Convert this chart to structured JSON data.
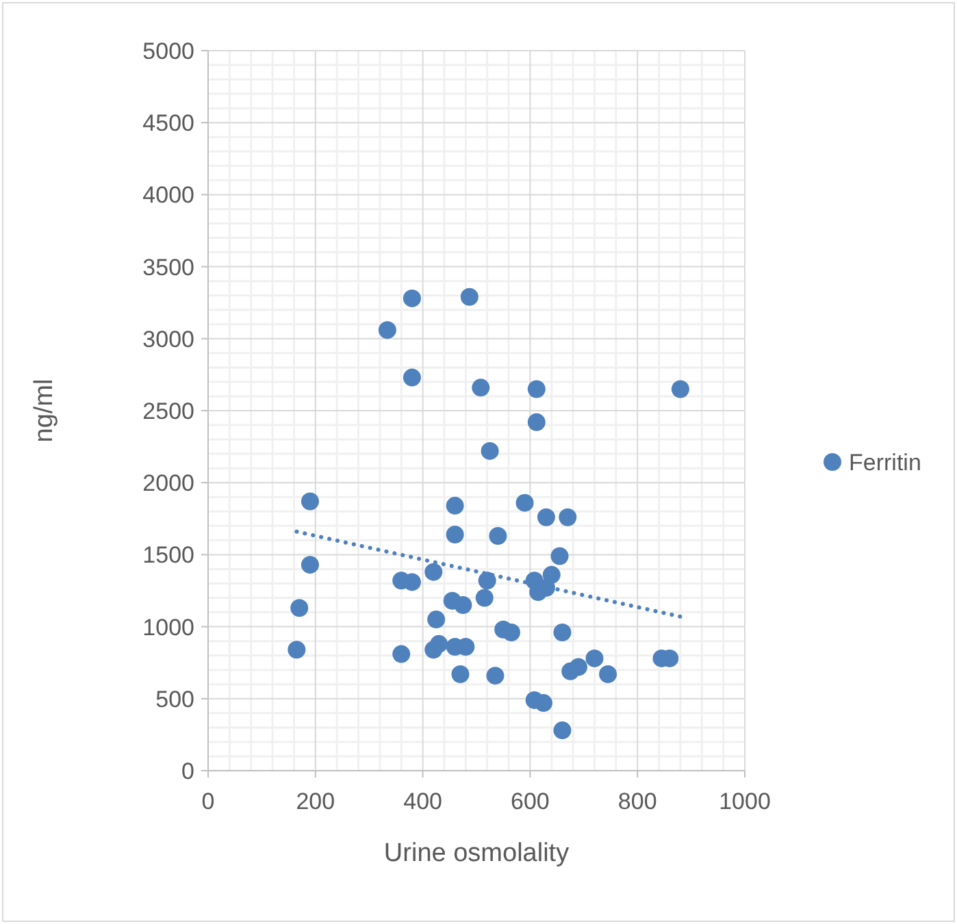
{
  "chart_data": {
    "type": "scatter",
    "xlabel": "Urine osmolality",
    "ylabel": "ng/ml",
    "xlim": [
      0,
      1000
    ],
    "xticks": [
      0,
      200,
      400,
      600,
      800,
      1000
    ],
    "ylim": [
      0,
      5000
    ],
    "yticks": [
      0,
      500,
      1000,
      1500,
      2000,
      2500,
      3000,
      3500,
      4000,
      4500,
      5000
    ],
    "grid": true,
    "legend": "right",
    "marker": "circle",
    "series": [
      {
        "name": "Ferritin",
        "color": "#4f81bd",
        "x": [
          165,
          170,
          190,
          190,
          334,
          380,
          380,
          487,
          508,
          612,
          612,
          525,
          460,
          590,
          630,
          670,
          460,
          540,
          655,
          360,
          380,
          420,
          520,
          608,
          640,
          630,
          615,
          515,
          455,
          475,
          425,
          550,
          565,
          660,
          360,
          420,
          430,
          460,
          480,
          720,
          690,
          675,
          745,
          845,
          860,
          470,
          535,
          608,
          625,
          660,
          880
        ],
        "values": [
          840,
          1130,
          1430,
          1870,
          3060,
          3280,
          2730,
          3290,
          2660,
          2650,
          2420,
          2220,
          1840,
          1860,
          1760,
          1760,
          1640,
          1630,
          1490,
          1320,
          1310,
          1380,
          1320,
          1320,
          1360,
          1270,
          1240,
          1200,
          1180,
          1150,
          1050,
          980,
          960,
          960,
          810,
          840,
          880,
          860,
          860,
          780,
          720,
          690,
          670,
          780,
          780,
          670,
          660,
          490,
          470,
          280,
          2650
        ]
      },
      {
        "type": "line",
        "line_style": "dotted",
        "marker": "none",
        "color": "#4f81bd",
        "x": [
          165,
          880
        ],
        "values": [
          1660,
          1070
        ]
      }
    ]
  }
}
